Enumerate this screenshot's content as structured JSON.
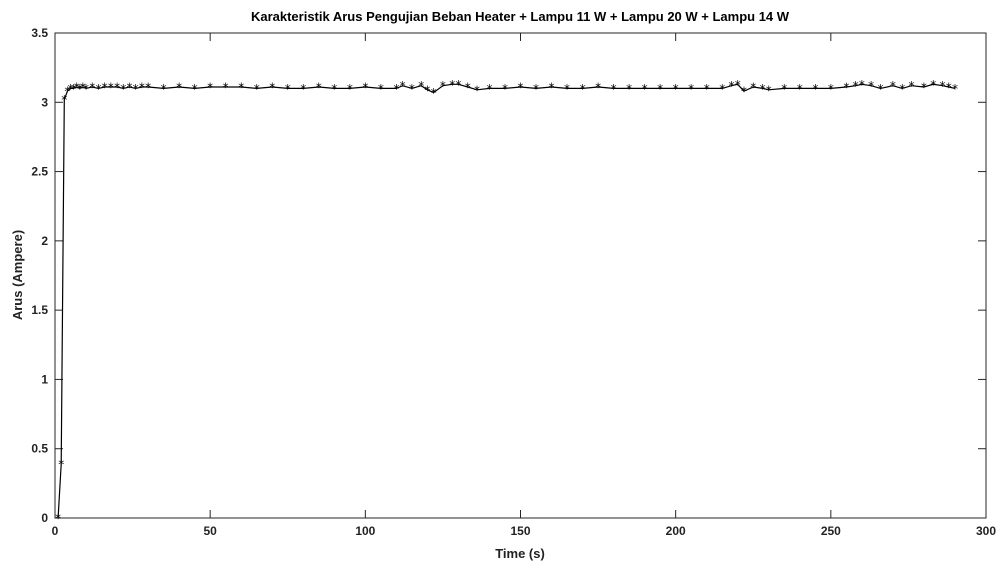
{
  "chart_data": {
    "type": "line",
    "title": "Karakteristik Arus Pengujian Beban Heater + Lampu 11 W + Lampu 20 W + Lampu 14 W",
    "xlabel": "Time (s)",
    "ylabel": "Arus (Ampere)",
    "xlim": [
      0,
      300
    ],
    "ylim": [
      0,
      3.5
    ],
    "xticks": [
      0,
      50,
      100,
      150,
      200,
      250,
      300
    ],
    "yticks": [
      0,
      0.5,
      1,
      1.5,
      2,
      2.5,
      3,
      3.5
    ],
    "grid": false,
    "marker": "*",
    "line_color": "#000000",
    "series": [
      {
        "x": [
          1,
          2,
          3,
          4,
          5,
          6,
          7,
          8,
          9,
          10,
          12,
          14,
          16,
          18,
          20,
          22,
          24,
          26,
          28,
          30,
          35,
          40,
          45,
          50,
          55,
          60,
          65,
          70,
          75,
          80,
          85,
          90,
          95,
          100,
          105,
          110,
          112,
          115,
          118,
          120,
          122,
          125,
          128,
          130,
          133,
          136,
          140,
          145,
          150,
          155,
          160,
          165,
          170,
          175,
          180,
          185,
          190,
          195,
          200,
          205,
          210,
          215,
          218,
          220,
          222,
          225,
          228,
          230,
          235,
          240,
          245,
          250,
          255,
          258,
          260,
          263,
          266,
          270,
          273,
          276,
          280,
          283,
          286,
          288,
          290
        ],
        "y": [
          0,
          0.39,
          3.02,
          3.08,
          3.1,
          3.1,
          3.11,
          3.1,
          3.11,
          3.1,
          3.11,
          3.1,
          3.11,
          3.11,
          3.11,
          3.1,
          3.11,
          3.1,
          3.11,
          3.11,
          3.1,
          3.11,
          3.1,
          3.11,
          3.11,
          3.11,
          3.1,
          3.11,
          3.1,
          3.1,
          3.11,
          3.1,
          3.1,
          3.11,
          3.1,
          3.1,
          3.12,
          3.1,
          3.12,
          3.09,
          3.07,
          3.12,
          3.13,
          3.13,
          3.11,
          3.09,
          3.1,
          3.1,
          3.11,
          3.1,
          3.11,
          3.1,
          3.1,
          3.11,
          3.1,
          3.1,
          3.1,
          3.1,
          3.1,
          3.1,
          3.1,
          3.1,
          3.12,
          3.13,
          3.08,
          3.11,
          3.1,
          3.09,
          3.1,
          3.1,
          3.1,
          3.1,
          3.11,
          3.12,
          3.13,
          3.12,
          3.1,
          3.12,
          3.1,
          3.12,
          3.11,
          3.13,
          3.12,
          3.11,
          3.1
        ]
      }
    ]
  }
}
